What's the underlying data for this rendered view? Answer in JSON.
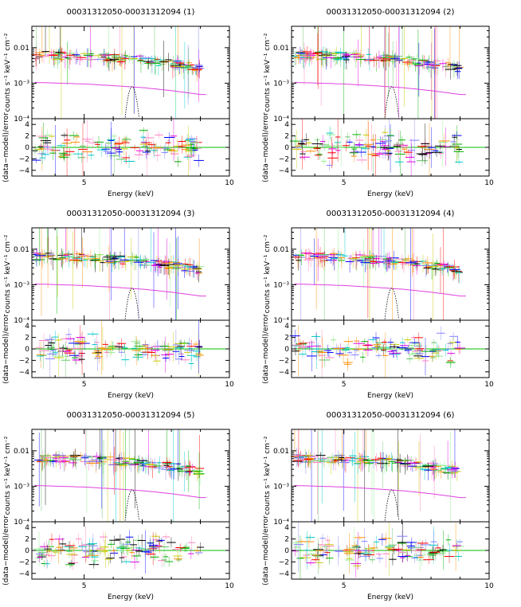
{
  "figure_label": "XSPEC spectral fit grid",
  "chart_data": [
    {
      "type": "scatter",
      "title": "00031312050-00031312094 (1)",
      "xlabel": "Energy (keV)",
      "upper": {
        "ylabel": "counts s⁻¹ keV⁻¹ cm⁻²",
        "yscale": "log",
        "ylim": [
          0.0001,
          0.04
        ],
        "ytick_labels": [
          "0.01",
          "10⁻³",
          "10⁻⁴"
        ],
        "ytick_values": [
          0.01,
          0.001,
          0.0001
        ],
        "data_band": {
          "energy": [
            3.3,
            5.0,
            7.0,
            9.0
          ],
          "flux": [
            0.0062,
            0.0058,
            0.0045,
            0.0026
          ]
        },
        "continuum_model": {
          "energy": [
            3.3,
            5.0,
            7.0,
            9.0
          ],
          "flux": [
            0.00105,
            0.00095,
            0.00075,
            0.00048
          ]
        },
        "iron_line": {
          "center_keV": 6.65,
          "peak": 0.0008,
          "width_keV": 0.12
        }
      },
      "lower": {
        "ylabel": "(data−model)/error",
        "ylim": [
          -5,
          5
        ],
        "ytick_labels": [
          "4",
          "2",
          "0",
          "−2",
          "−4"
        ],
        "ytick_values": [
          4,
          2,
          0,
          -2,
          -4
        ]
      },
      "xlim": [
        3.2,
        10
      ],
      "xtick_labels": [
        "5",
        "10"
      ],
      "xtick_values": [
        5,
        10
      ],
      "seed": 11
    },
    {
      "type": "scatter",
      "title": "00031312050-00031312094 (2)",
      "xlabel": "Energy (keV)",
      "upper": {
        "ylabel": "counts s⁻¹ keV⁻¹ cm⁻²",
        "yscale": "log",
        "ylim": [
          0.0001,
          0.04
        ],
        "ytick_labels": [
          "0.01",
          "10⁻³",
          "10⁻⁴"
        ],
        "ytick_values": [
          0.01,
          0.001,
          0.0001
        ],
        "data_band": {
          "energy": [
            3.3,
            5.0,
            7.0,
            9.0
          ],
          "flux": [
            0.0062,
            0.0058,
            0.0045,
            0.0026
          ]
        },
        "continuum_model": {
          "energy": [
            3.3,
            5.0,
            7.0,
            9.0
          ],
          "flux": [
            0.00105,
            0.00095,
            0.00075,
            0.00048
          ]
        },
        "iron_line": {
          "center_keV": 6.65,
          "peak": 0.0008,
          "width_keV": 0.12
        }
      },
      "lower": {
        "ylabel": "(data−model)/error",
        "ylim": [
          -5,
          5
        ],
        "ytick_labels": [
          "4",
          "2",
          "0",
          "−2",
          "−4"
        ],
        "ytick_values": [
          4,
          2,
          0,
          -2,
          -4
        ]
      },
      "xlim": [
        3.2,
        10
      ],
      "xtick_labels": [
        "5",
        "10"
      ],
      "xtick_values": [
        5,
        10
      ],
      "seed": 23
    },
    {
      "type": "scatter",
      "title": "00031312050-00031312094 (3)",
      "xlabel": "Energy (keV)",
      "upper": {
        "ylabel": "counts s⁻¹ keV⁻¹ cm⁻²",
        "yscale": "log",
        "ylim": [
          0.0001,
          0.04
        ],
        "ytick_labels": [
          "0.01",
          "10⁻³",
          "10⁻⁴"
        ],
        "ytick_values": [
          0.01,
          0.001,
          0.0001
        ],
        "data_band": {
          "energy": [
            3.3,
            5.0,
            7.0,
            9.0
          ],
          "flux": [
            0.0062,
            0.0058,
            0.0045,
            0.0026
          ]
        },
        "continuum_model": {
          "energy": [
            3.3,
            5.0,
            7.0,
            9.0
          ],
          "flux": [
            0.00105,
            0.00095,
            0.00075,
            0.00048
          ]
        },
        "iron_line": {
          "center_keV": 6.65,
          "peak": 0.0008,
          "width_keV": 0.12
        }
      },
      "lower": {
        "ylabel": "(data−model)/error",
        "ylim": [
          -5,
          5
        ],
        "ytick_labels": [
          "4",
          "2",
          "0",
          "−2",
          "−4"
        ],
        "ytick_values": [
          4,
          2,
          0,
          -2,
          -4
        ]
      },
      "xlim": [
        3.2,
        10
      ],
      "xtick_labels": [
        "5",
        "10"
      ],
      "xtick_values": [
        5,
        10
      ],
      "seed": 37
    },
    {
      "type": "scatter",
      "title": "00031312050-00031312094 (4)",
      "xlabel": "Energy (keV)",
      "upper": {
        "ylabel": "counts s⁻¹ keV⁻¹ cm⁻²",
        "yscale": "log",
        "ylim": [
          0.0001,
          0.04
        ],
        "ytick_labels": [
          "0.01",
          "10⁻³",
          "10⁻⁴"
        ],
        "ytick_values": [
          0.01,
          0.001,
          0.0001
        ],
        "data_band": {
          "energy": [
            3.3,
            5.0,
            7.0,
            9.0
          ],
          "flux": [
            0.0062,
            0.0058,
            0.0045,
            0.0026
          ]
        },
        "continuum_model": {
          "energy": [
            3.3,
            5.0,
            7.0,
            9.0
          ],
          "flux": [
            0.00105,
            0.00095,
            0.00075,
            0.00048
          ]
        },
        "iron_line": {
          "center_keV": 6.65,
          "peak": 0.0008,
          "width_keV": 0.12
        }
      },
      "lower": {
        "ylabel": "(data−model)/error",
        "ylim": [
          -5,
          5
        ],
        "ytick_labels": [
          "4",
          "2",
          "0",
          "−2",
          "−4"
        ],
        "ytick_values": [
          4,
          2,
          0,
          -2,
          -4
        ]
      },
      "xlim": [
        3.2,
        10
      ],
      "xtick_labels": [
        "5",
        "10"
      ],
      "xtick_values": [
        5,
        10
      ],
      "seed": 41
    },
    {
      "type": "scatter",
      "title": "00031312050-00031312094 (5)",
      "xlabel": "Energy (keV)",
      "upper": {
        "ylabel": "counts s⁻¹ keV⁻¹ cm⁻²",
        "yscale": "log",
        "ylim": [
          0.0001,
          0.04
        ],
        "ytick_labels": [
          "0.01",
          "10⁻³",
          "10⁻⁴"
        ],
        "ytick_values": [
          0.01,
          0.001,
          0.0001
        ],
        "data_band": {
          "energy": [
            3.3,
            5.0,
            7.0,
            9.0
          ],
          "flux": [
            0.0062,
            0.0058,
            0.0045,
            0.0026
          ]
        },
        "continuum_model": {
          "energy": [
            3.3,
            5.0,
            7.0,
            9.0
          ],
          "flux": [
            0.00105,
            0.00095,
            0.00075,
            0.00048
          ]
        },
        "iron_line": {
          "center_keV": 6.65,
          "peak": 0.0008,
          "width_keV": 0.12
        }
      },
      "lower": {
        "ylabel": "(data−model)/error",
        "ylim": [
          -5,
          5
        ],
        "ytick_labels": [
          "4",
          "2",
          "0",
          "−2",
          "−4"
        ],
        "ytick_values": [
          4,
          2,
          0,
          -2,
          -4
        ]
      },
      "xlim": [
        3.2,
        10
      ],
      "xtick_labels": [
        "5",
        "10"
      ],
      "xtick_values": [
        5,
        10
      ],
      "seed": 53
    },
    {
      "type": "scatter",
      "title": "00031312050-00031312094 (6)",
      "xlabel": "Energy (keV)",
      "upper": {
        "ylabel": "counts s⁻¹ keV⁻¹ cm⁻²",
        "yscale": "log",
        "ylim": [
          0.0001,
          0.04
        ],
        "ytick_labels": [
          "0.01",
          "10⁻³",
          "10⁻⁴"
        ],
        "ytick_values": [
          0.01,
          0.001,
          0.0001
        ],
        "data_band": {
          "energy": [
            3.3,
            5.0,
            7.0,
            9.0
          ],
          "flux": [
            0.0062,
            0.0058,
            0.0045,
            0.0026
          ]
        },
        "continuum_model": {
          "energy": [
            3.3,
            5.0,
            7.0,
            9.0
          ],
          "flux": [
            0.00105,
            0.00095,
            0.00075,
            0.00048
          ]
        },
        "iron_line": {
          "center_keV": 6.65,
          "peak": 0.0008,
          "width_keV": 0.12
        }
      },
      "lower": {
        "ylabel": "(data−model)/error",
        "ylim": [
          -5,
          5
        ],
        "ytick_labels": [
          "4",
          "2",
          "0",
          "−2",
          "−4"
        ],
        "ytick_values": [
          4,
          2,
          0,
          -2,
          -4
        ]
      },
      "xlim": [
        3.2,
        10
      ],
      "xtick_labels": [
        "5",
        "10"
      ],
      "xtick_values": [
        5,
        10
      ],
      "seed": 67
    }
  ],
  "colors": {
    "series": [
      "#000000",
      "#ff0000",
      "#00b000",
      "#0000ff",
      "#00c8c8",
      "#e000e0",
      "#c8c800",
      "#ff8c00",
      "#90ee90",
      "#8080ff",
      "#ff80c0",
      "#60c060"
    ],
    "continuum": "#e040e0",
    "iron_line": "#000000",
    "zero_line": "#00c000",
    "axis": "#000000"
  }
}
